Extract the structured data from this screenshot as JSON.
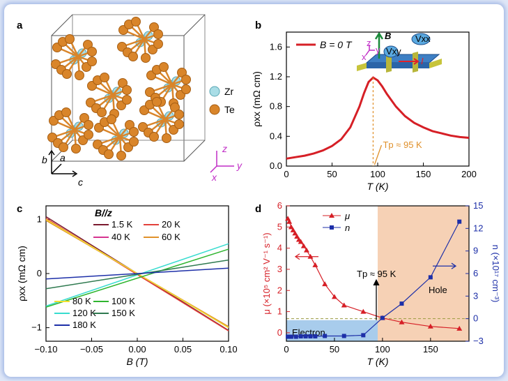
{
  "panels": {
    "a": "a",
    "b": "b",
    "c": "c",
    "d": "d"
  },
  "panel_a": {
    "legend": [
      {
        "label": "Zr",
        "color": "#a9dde6"
      },
      {
        "label": "Te",
        "color": "#d9852a"
      }
    ],
    "axes_left": {
      "b": "b",
      "a": "a",
      "c": "c"
    },
    "axes_right": {
      "z": "z",
      "y": "y",
      "x": "x"
    }
  },
  "chart_data": [
    {
      "panel": "b",
      "type": "line",
      "x": [
        0,
        10,
        20,
        30,
        40,
        50,
        60,
        70,
        80,
        85,
        90,
        95,
        100,
        105,
        110,
        120,
        130,
        140,
        150,
        160,
        170,
        180,
        190,
        200
      ],
      "series": [
        {
          "name": "B = 0 T",
          "color": "#d61f26",
          "values": [
            0.1,
            0.12,
            0.14,
            0.17,
            0.21,
            0.27,
            0.36,
            0.52,
            0.8,
            0.98,
            1.13,
            1.19,
            1.15,
            1.07,
            0.97,
            0.8,
            0.67,
            0.58,
            0.52,
            0.47,
            0.44,
            0.41,
            0.39,
            0.38
          ]
        }
      ],
      "xlabel": "T (K)",
      "ylabel": "ρxx (mΩ cm)",
      "xlim": [
        0,
        200
      ],
      "ylim": [
        0,
        1.8
      ],
      "xticks": [
        "0",
        "50",
        "100",
        "150",
        "200"
      ],
      "yticks": [
        "0.0",
        "0.4",
        "0.8",
        "1.2",
        "1.6"
      ],
      "legend_text": "B = 0 T",
      "annotation": "Tp ≈ 95 K",
      "annotation_x": 95,
      "annotation_color": "#e0902a",
      "inset_labels": {
        "B": "B",
        "vxx": "Vxx",
        "vxy": "Vxy",
        "I": "I",
        "z": "z",
        "y": "y",
        "x": "x"
      }
    },
    {
      "panel": "c",
      "type": "line",
      "title": "B//z",
      "xlabel": "B (T)",
      "ylabel": "ρxx (mΩ cm)",
      "xlim": [
        -0.1,
        0.1
      ],
      "ylim": [
        -1.25,
        1.25
      ],
      "xticks": [
        "−0.10",
        "−0.05",
        "0.00",
        "0.05",
        "0.10"
      ],
      "yticks": [
        "−1",
        "0",
        "1"
      ],
      "x": [
        -0.1,
        0.1
      ],
      "series": [
        {
          "name": "1.5 K",
          "color": "#7a1a2e",
          "values": [
            1.05,
            -1.05
          ]
        },
        {
          "name": "20 K",
          "color": "#e2403a",
          "values": [
            1.02,
            -1.06
          ]
        },
        {
          "name": "40 K",
          "color": "#d6338f",
          "values": [
            1.0,
            -1.0
          ]
        },
        {
          "name": "60 K",
          "color": "#e0922a",
          "values": [
            0.98,
            -0.98
          ]
        },
        {
          "name": "80 K",
          "color": "#f2e130",
          "values": [
            1.0,
            -1.0
          ]
        },
        {
          "name": "100 K",
          "color": "#2fb52f",
          "values": [
            -0.62,
            0.45
          ]
        },
        {
          "name": "120 K",
          "color": "#37dccf",
          "values": [
            -0.6,
            0.55
          ]
        },
        {
          "name": "150 K",
          "color": "#2f7a50",
          "values": [
            -0.28,
            0.25
          ]
        },
        {
          "name": "180 K",
          "color": "#1d2fa8",
          "values": [
            -0.1,
            0.1
          ]
        }
      ]
    },
    {
      "panel": "d",
      "type": "line",
      "xlabel": "T (K)",
      "xlim": [
        0,
        190
      ],
      "xticks": [
        "0",
        "50",
        "100",
        "150"
      ],
      "ylabel_left": "μ (×10⁵ cm² V⁻¹ s⁻¹)",
      "ylim_left": [
        -0.4,
        6
      ],
      "yticks_left": [
        "0",
        "1",
        "2",
        "3",
        "4",
        "5",
        "6"
      ],
      "ylabel_right": "n (×10¹⁷ cm⁻³)",
      "ylim_right": [
        -3,
        15
      ],
      "yticks_right": [
        "−3",
        "0",
        "3",
        "6",
        "9",
        "12",
        "15"
      ],
      "series": [
        {
          "name": "μ",
          "axis": "left",
          "color": "#d61f26",
          "marker": "triangle",
          "x": [
            1.5,
            3,
            5,
            7,
            9,
            11,
            13,
            15,
            18,
            21,
            25,
            30,
            40,
            50,
            60,
            80,
            100,
            120,
            150,
            180
          ],
          "values": [
            5.4,
            5.25,
            5.0,
            4.85,
            4.7,
            4.55,
            4.4,
            4.3,
            4.1,
            3.9,
            3.6,
            3.2,
            2.3,
            1.7,
            1.3,
            1.0,
            0.7,
            0.5,
            0.3,
            0.2
          ]
        },
        {
          "name": "n",
          "axis": "right",
          "color": "#1d2fa8",
          "marker": "square",
          "x": [
            1.5,
            5,
            10,
            15,
            20,
            25,
            30,
            40,
            60,
            80,
            100,
            120,
            150,
            180
          ],
          "values": [
            -2.4,
            -2.4,
            -2.4,
            -2.35,
            -2.35,
            -2.35,
            -2.35,
            -2.3,
            -2.3,
            -2.2,
            0.1,
            2.0,
            5.5,
            12.9
          ]
        }
      ],
      "annotation": "Tp ≈ 95 K",
      "transition_x": 95,
      "regions": [
        {
          "label": "Electron",
          "color": "#9fc6ea"
        },
        {
          "label": "Hole",
          "color": "#f4c9a8"
        }
      ]
    }
  ]
}
